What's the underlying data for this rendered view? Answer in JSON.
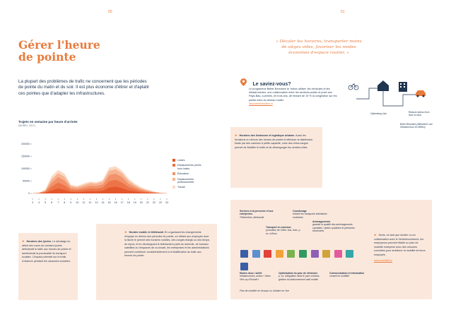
{
  "page": {
    "left_number": "50",
    "right_number": "51"
  },
  "title": {
    "line1": "Gérer l'heure",
    "line2": "de pointe"
  },
  "intro": "La plupart des problèmes de trafic ne concernent que les périodes de pointe du matin et du soir. Il est plus économe d'étirer et d'aplatir ces pointes que d'adapter les infrastructures.",
  "chart_data": {
    "type": "area",
    "title": "Trajets en semaine par heure d'arrivée",
    "source": "(MOBEL 2017)",
    "x": [
      "3",
      "4",
      "5",
      "6",
      "7",
      "8",
      "9",
      "10",
      "11",
      "12",
      "13",
      "14",
      "15",
      "16",
      "17",
      "18",
      "19",
      "20",
      "21",
      "22",
      "23",
      "24"
    ],
    "ylim": [
      0,
      200000
    ],
    "yticks": [
      "0",
      "50000",
      "100000",
      "150000",
      "200000"
    ],
    "series": [
      {
        "name": "Travail",
        "color": "#fbd9c4",
        "values": [
          1000,
          3000,
          15000,
          70000,
          95000,
          80000,
          35000,
          30000,
          40000,
          48000,
          45000,
          55000,
          105000,
          110000,
          92000,
          60000,
          40000,
          25000,
          15000,
          8000,
          3000,
          1000
        ]
      },
      {
        "name": "Déplacements professionnels",
        "color": "#f7b493",
        "values": [
          800,
          2500,
          12000,
          58000,
          82000,
          68000,
          30000,
          26000,
          34000,
          42000,
          40000,
          48000,
          92000,
          98000,
          82000,
          52000,
          34000,
          20000,
          12000,
          6000,
          2000,
          800
        ]
      },
      {
        "name": "Éducation",
        "color": "#f2926a",
        "values": [
          600,
          2000,
          9000,
          44000,
          66000,
          52000,
          22000,
          19000,
          25000,
          31000,
          30000,
          36000,
          74000,
          80000,
          66000,
          40000,
          26000,
          15000,
          9000,
          4500,
          1500,
          600
        ]
      },
      {
        "name": "Déplacements privés hors loisirs",
        "color": "#ec7448",
        "values": [
          400,
          1500,
          6000,
          28000,
          44000,
          33000,
          14000,
          12000,
          16000,
          20000,
          19000,
          24000,
          50000,
          55000,
          45000,
          26000,
          17000,
          9000,
          5500,
          2800,
          1000,
          400
        ]
      },
      {
        "name": "Loisirs",
        "color": "#e4562b",
        "values": [
          200,
          800,
          3000,
          12000,
          20000,
          14000,
          6000,
          5000,
          7000,
          9000,
          8500,
          11000,
          24000,
          27000,
          21000,
          12000,
          8000,
          4000,
          2500,
          1200,
          500,
          200
        ]
      }
    ]
  },
  "box_left": {
    "title": "Horaires des lycées.",
    "text": "Le décalage du début des cours de certains lycées délesterait le trafic aux heures de pointe et améliorerait la ponctualité du transport scolaire. L'impact potentiel sur le trafic s'observe pendant les vacances scolaires."
  },
  "box_mid": {
    "title": "Horaire mobile et télétravail.",
    "text": "En organisant les changements d'équipe en dehors des périodes de pointe, en offrant aux employés dont la tâche le permet des horaires mobiles, des congés élargis ou des temps de repos, et en développant le télétravail à partir du domicile, de bureaux satellites ou d'espaces de co-travail, les entreprises et les administrations peuvent contribuer considérablement à la fluidification du trafic aux heures de pointe."
  },
  "quote": "« Décaler les horaires, transporter moins de sièges vides, favoriser les modes économes d'espace routier. »",
  "saviez": {
    "title": "Le saviez-vous?",
    "text": "Le programme Better Benutzen le 'mieux utiliser' les véhicules et les infrastructures, une collaboration entre les secteurs public et privé aux Pays-Bas, a permis, en trois ans, de réduire de 19 % la congestion sur les points noirs du réseau routier.",
    "link": "www.beterbenutten.nl"
  },
  "diagram": {
    "label_left": "Optimising Use",
    "label_right": "Reduce stress from door to door",
    "source": "Beter Benutten (Ministerie van Infrastructuur en Milieu)"
  },
  "box_right": {
    "title": "Horaires des livraisons et logistique urbaine.",
    "text": "Aussi les livraisons en dehors des heures de pointe et effectuer la distribution finale par des camions à petite capacité, voire des vélos-cargos permet de fluidifier le trafic et de désengorger les centres-villes."
  },
  "services": {
    "top_labels": [
      {
        "title": "Services à la personne et aux entreprises",
        "sub": "Télécentres, télétravail"
      },
      {
        "title": "Covoiturage",
        "sub": "réduire les transports individuels motorisés"
      },
      {
        "title": "Transport en commun",
        "sub": "promotion de l'offre: bus, train, p. ex. m2bus"
      },
      {
        "title": "Aménagements",
        "sub": "garantir la qualité des aménagements cyclables / pistes cyclables et piétonnes sécurisées"
      }
    ],
    "bottom_labels": [
      {
        "title": "Modes doux / actifs",
        "sub": "infrastructures, action « Mam Vëlo op d'Schaff »"
      },
      {
        "title": "Optimisation du parc de véhicules",
        "sub": "p. ex. intégration dans le parc voitures, gestion du stationnement actif mobile"
      },
      {
        "title": "Communication et information",
        "sub": "conseil en mobilité"
      }
    ],
    "footer": "Plan de mobilité en Groupe ou Unitaire en Vue",
    "colors": [
      "#3a5fa8",
      "#5b8fd0",
      "#e0423a",
      "#f2a23a",
      "#7bb24e",
      "#2f9a62",
      "#8f5fb6",
      "#d1a43b",
      "#e35b9c",
      "#37a6a6",
      "#3a5fa8"
    ],
    "side_title": "Seuls, en tant que doufier ou en collaboration avec le Verkéiersverbond, les employeurs peuvent établir un plan de mobilité entreprise avec des mesures concrètes pour améliorer la mobilité de leurs employés.",
    "side_link": "www.mobiliteit.lu"
  }
}
